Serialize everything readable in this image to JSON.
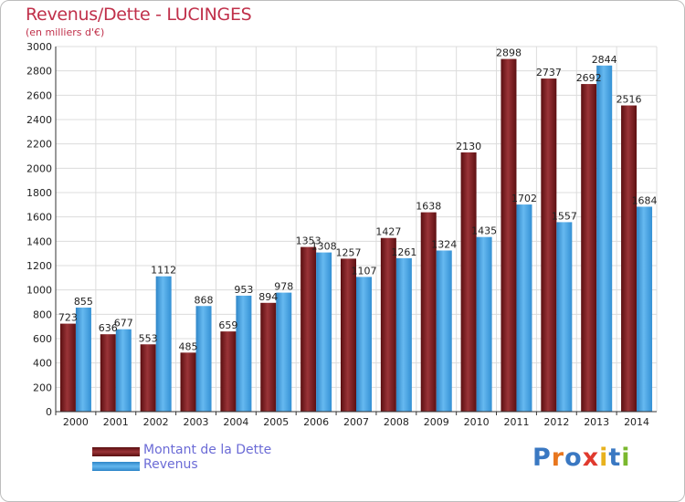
{
  "header": {
    "title": "Revenus/Dette - LUCINGES",
    "subtitle": "(en milliers d'€)"
  },
  "chart_data": {
    "type": "bar",
    "title": "Revenus/Dette - LUCINGES",
    "subtitle": "(en milliers d'€)",
    "categories": [
      "2000",
      "2001",
      "2002",
      "2003",
      "2004",
      "2005",
      "2006",
      "2007",
      "2008",
      "2009",
      "2010",
      "2011",
      "2012",
      "2013",
      "2014"
    ],
    "series": [
      {
        "name": "Montant de la Dette",
        "color": "#7a1c1f",
        "values": [
          723,
          636,
          553,
          485,
          659,
          894,
          1353,
          1257,
          1427,
          1638,
          2130,
          2898,
          2737,
          2692,
          2516
        ]
      },
      {
        "name": "Revenus",
        "color": "#3f9fe0",
        "values": [
          855,
          677,
          1112,
          868,
          953,
          978,
          1308,
          1107,
          1261,
          1324,
          1435,
          1702,
          1557,
          2844,
          1684
        ]
      }
    ],
    "y_ticks": [
      0,
      200,
      400,
      600,
      800,
      1000,
      1200,
      1400,
      1600,
      1800,
      2000,
      2200,
      2400,
      2600,
      2800,
      3000
    ],
    "ylim": [
      0,
      3000
    ],
    "grid": true,
    "legend_position": "bottom-left"
  },
  "legend": {
    "items": [
      {
        "label": "Montant de la Dette",
        "color": "#7a1c1f"
      },
      {
        "label": "Revenus",
        "color": "#3f9fe0"
      }
    ]
  },
  "logo": {
    "text": "Proxiti"
  }
}
